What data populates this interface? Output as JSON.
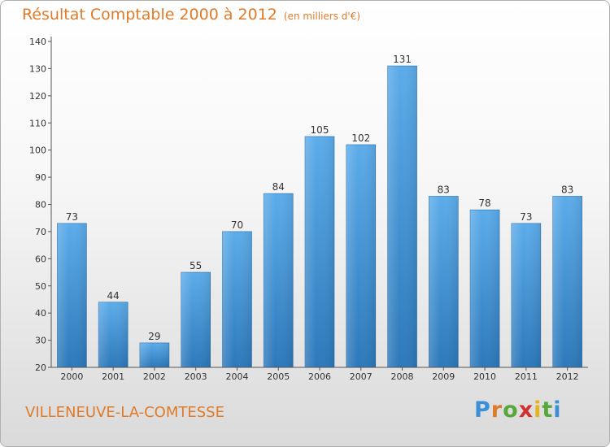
{
  "title": "Résultat Comptable 2000 à 2012",
  "unit": "(en milliers d'€)",
  "commune": "VILLENEUVE-LA-COMTESSE",
  "logo": {
    "text": "Proxiti",
    "letters": [
      "P",
      "r",
      "o",
      "x",
      "i",
      "t",
      "i"
    ],
    "colors": [
      "#3a8fd8",
      "#e07b2a",
      "#56a83c",
      "#d2302c",
      "#e8b321",
      "#56a83c",
      "#3a8fd8"
    ]
  },
  "colors": {
    "bar_top": "#5cacea",
    "bar_bottom": "#2c78ba",
    "title": "#e07b2a",
    "axis": "#555555"
  },
  "chart_data": {
    "type": "bar",
    "title": "Résultat Comptable 2000 à 2012",
    "ylabel": "(en milliers d'€)",
    "xlabel": "",
    "categories": [
      "2000",
      "2001",
      "2002",
      "2003",
      "2004",
      "2005",
      "2006",
      "2007",
      "2008",
      "2009",
      "2010",
      "2011",
      "2012"
    ],
    "values": [
      73,
      44,
      29,
      55,
      70,
      84,
      105,
      102,
      131,
      83,
      78,
      73,
      83
    ],
    "ylim": [
      20,
      140
    ],
    "yticks": [
      20,
      30,
      40,
      50,
      60,
      70,
      80,
      90,
      100,
      110,
      120,
      130,
      140
    ],
    "grid": false
  }
}
